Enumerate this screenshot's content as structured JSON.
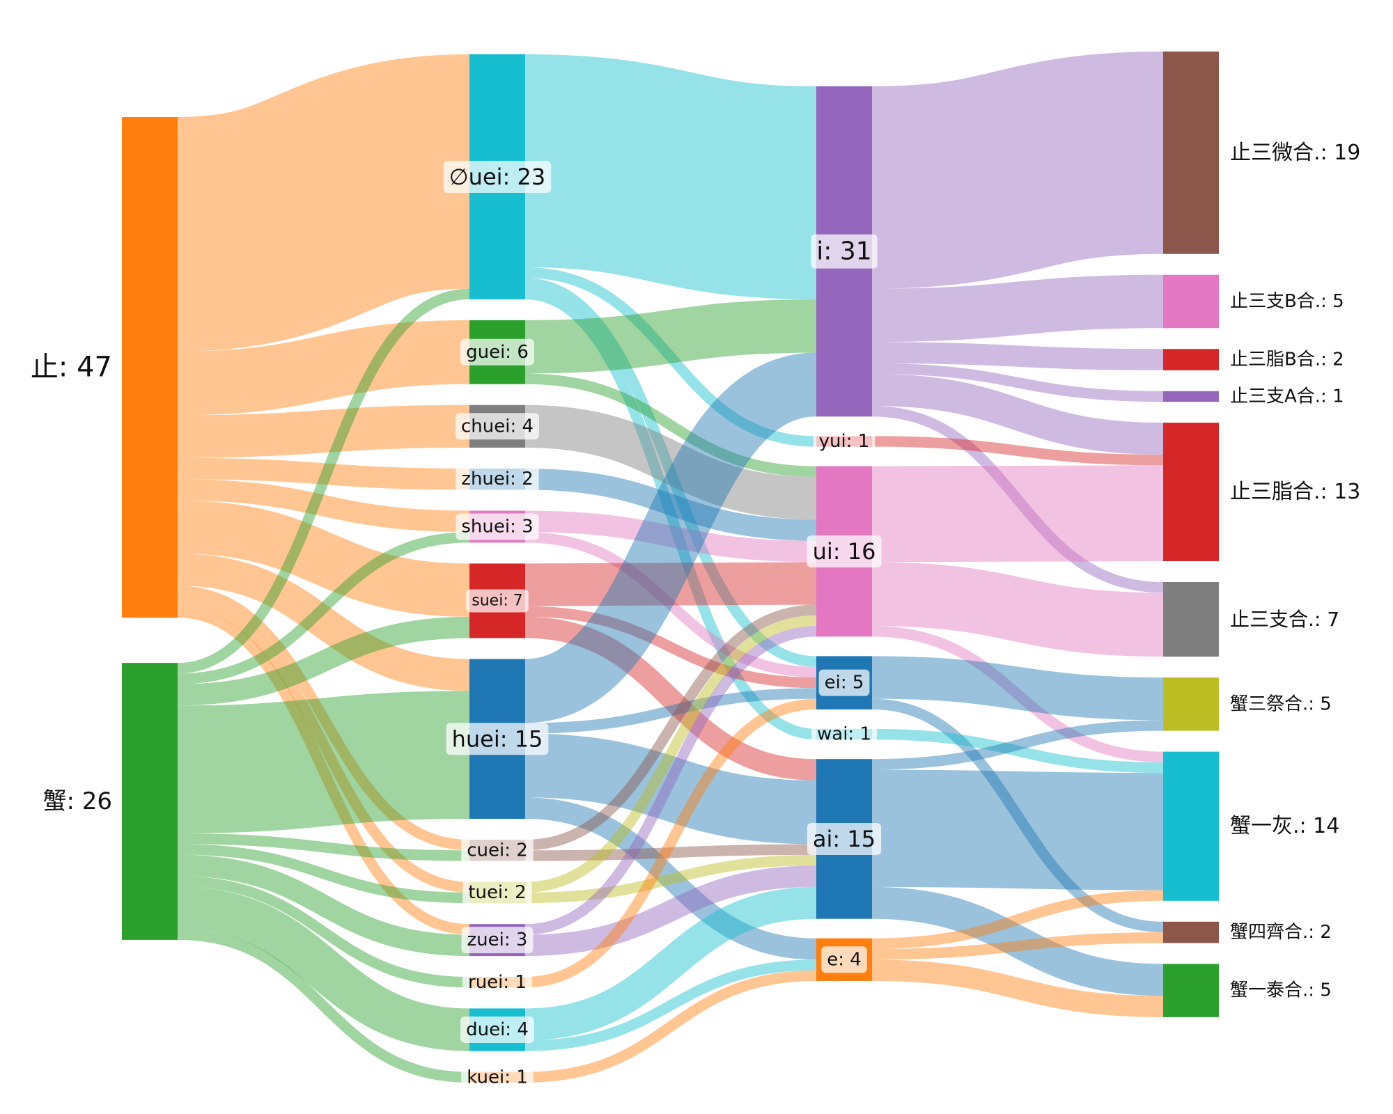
{
  "chart_data": {
    "type": "sankey",
    "title": "",
    "columns": [
      [
        {
          "id": "zhi",
          "label": "止: 47",
          "value": 47,
          "color": "#ff7f0e"
        },
        {
          "id": "xie",
          "label": "蟹: 26",
          "value": 26,
          "color": "#2ca02c"
        }
      ],
      [
        {
          "id": "0uei",
          "label": "∅uei: 23",
          "value": 23,
          "color": "#17becf"
        },
        {
          "id": "guei",
          "label": "guei: 6",
          "value": 6,
          "color": "#2ca02c"
        },
        {
          "id": "chuei",
          "label": "chuei: 4",
          "value": 4,
          "color": "#7f7f7f"
        },
        {
          "id": "zhuei",
          "label": "zhuei: 2",
          "value": 2,
          "color": "#1f77b4"
        },
        {
          "id": "shuei",
          "label": "shuei: 3",
          "value": 3,
          "color": "#e377c2"
        },
        {
          "id": "suei",
          "label": "suei: 7",
          "value": 7,
          "color": "#d62728"
        },
        {
          "id": "huei",
          "label": "huei: 15",
          "value": 15,
          "color": "#1f77b4"
        },
        {
          "id": "cuei",
          "label": "cuei: 2",
          "value": 2,
          "color": "#8c564b"
        },
        {
          "id": "tuei",
          "label": "tuei: 2",
          "value": 2,
          "color": "#bcbd22"
        },
        {
          "id": "zuei",
          "label": "zuei: 3",
          "value": 3,
          "color": "#9467bd"
        },
        {
          "id": "ruei",
          "label": "ruei: 1",
          "value": 1,
          "color": "#ff7f0e"
        },
        {
          "id": "duei",
          "label": "duei: 4",
          "value": 4,
          "color": "#17becf"
        },
        {
          "id": "kuei",
          "label": "kuei: 1",
          "value": 1,
          "color": "#ff7f0e"
        }
      ],
      [
        {
          "id": "i",
          "label": "i: 31",
          "value": 31,
          "color": "#9467bd"
        },
        {
          "id": "yui",
          "label": "yui: 1",
          "value": 1,
          "color": "#d62728"
        },
        {
          "id": "ui",
          "label": "ui: 16",
          "value": 16,
          "color": "#e377c2"
        },
        {
          "id": "ei",
          "label": "ei: 5",
          "value": 5,
          "color": "#1f77b4"
        },
        {
          "id": "wai",
          "label": "wai: 1",
          "value": 1,
          "color": "#17becf"
        },
        {
          "id": "ai",
          "label": "ai: 15",
          "value": 15,
          "color": "#1f77b4"
        },
        {
          "id": "e",
          "label": "e: 4",
          "value": 4,
          "color": "#ff7f0e"
        }
      ],
      [
        {
          "id": "z3wei",
          "label": "止三微合.: 19",
          "value": 19,
          "color": "#8c564b"
        },
        {
          "id": "z3zhiB",
          "label": "止三支B合.: 5",
          "value": 5,
          "color": "#e377c2"
        },
        {
          "id": "z3ziB",
          "label": "止三脂B合.: 2",
          "value": 2,
          "color": "#d62728"
        },
        {
          "id": "z3zhiA",
          "label": "止三支A合.: 1",
          "value": 1,
          "color": "#9467bd"
        },
        {
          "id": "z3zi",
          "label": "止三脂合.: 13",
          "value": 13,
          "color": "#d62728"
        },
        {
          "id": "z3zhi",
          "label": "止三支合.: 7",
          "value": 7,
          "color": "#7f7f7f"
        },
        {
          "id": "x3ji",
          "label": "蟹三祭合.: 5",
          "value": 5,
          "color": "#bcbd22"
        },
        {
          "id": "x1hui",
          "label": "蟹一灰.: 14",
          "value": 14,
          "color": "#17becf"
        },
        {
          "id": "x4qi",
          "label": "蟹四齊合.: 2",
          "value": 2,
          "color": "#8c564b"
        },
        {
          "id": "x1tai",
          "label": "蟹一泰合.: 5",
          "value": 5,
          "color": "#2ca02c"
        }
      ]
    ],
    "links": [
      {
        "source": "zhi",
        "target": "0uei",
        "value": 22
      },
      {
        "source": "zhi",
        "target": "guei",
        "value": 6
      },
      {
        "source": "zhi",
        "target": "chuei",
        "value": 4
      },
      {
        "source": "zhi",
        "target": "zhuei",
        "value": 2
      },
      {
        "source": "zhi",
        "target": "shuei",
        "value": 2
      },
      {
        "source": "zhi",
        "target": "suei",
        "value": 5
      },
      {
        "source": "zhi",
        "target": "huei",
        "value": 3
      },
      {
        "source": "zhi",
        "target": "tuei",
        "value": 1
      },
      {
        "source": "zhi",
        "target": "zuei",
        "value": 1
      },
      {
        "source": "zhi",
        "target": "cuei",
        "value": 1
      },
      {
        "source": "xie",
        "target": "0uei",
        "value": 1
      },
      {
        "source": "xie",
        "target": "shuei",
        "value": 1
      },
      {
        "source": "xie",
        "target": "suei",
        "value": 2
      },
      {
        "source": "xie",
        "target": "huei",
        "value": 12
      },
      {
        "source": "xie",
        "target": "cuei",
        "value": 1
      },
      {
        "source": "xie",
        "target": "tuei",
        "value": 1
      },
      {
        "source": "xie",
        "target": "zuei",
        "value": 2
      },
      {
        "source": "xie",
        "target": "ruei",
        "value": 1
      },
      {
        "source": "xie",
        "target": "duei",
        "value": 4
      },
      {
        "source": "xie",
        "target": "kuei",
        "value": 1
      },
      {
        "source": "0uei",
        "target": "i",
        "value": 20
      },
      {
        "source": "0uei",
        "target": "yui",
        "value": 1
      },
      {
        "source": "0uei",
        "target": "ei",
        "value": 1
      },
      {
        "source": "0uei",
        "target": "wai",
        "value": 1
      },
      {
        "source": "guei",
        "target": "i",
        "value": 5
      },
      {
        "source": "guei",
        "target": "ui",
        "value": 1
      },
      {
        "source": "chuei",
        "target": "ui",
        "value": 4
      },
      {
        "source": "zhuei",
        "target": "ui",
        "value": 2
      },
      {
        "source": "shuei",
        "target": "ui",
        "value": 2
      },
      {
        "source": "shuei",
        "target": "ei",
        "value": 1
      },
      {
        "source": "suei",
        "target": "ui",
        "value": 4
      },
      {
        "source": "suei",
        "target": "ei",
        "value": 1
      },
      {
        "source": "suei",
        "target": "ai",
        "value": 2
      },
      {
        "source": "huei",
        "target": "i",
        "value": 6
      },
      {
        "source": "huei",
        "target": "ei",
        "value": 1
      },
      {
        "source": "huei",
        "target": "ai",
        "value": 6
      },
      {
        "source": "huei",
        "target": "e",
        "value": 2
      },
      {
        "source": "cuei",
        "target": "ui",
        "value": 1
      },
      {
        "source": "cuei",
        "target": "ai",
        "value": 1
      },
      {
        "source": "tuei",
        "target": "ui",
        "value": 1
      },
      {
        "source": "tuei",
        "target": "ai",
        "value": 1
      },
      {
        "source": "zuei",
        "target": "ui",
        "value": 1
      },
      {
        "source": "zuei",
        "target": "ai",
        "value": 2
      },
      {
        "source": "ruei",
        "target": "ei",
        "value": 1
      },
      {
        "source": "duei",
        "target": "ai",
        "value": 3
      },
      {
        "source": "duei",
        "target": "e",
        "value": 1
      },
      {
        "source": "kuei",
        "target": "e",
        "value": 1
      },
      {
        "source": "i",
        "target": "z3wei",
        "value": 19
      },
      {
        "source": "i",
        "target": "z3zhiB",
        "value": 5
      },
      {
        "source": "i",
        "target": "z3ziB",
        "value": 2
      },
      {
        "source": "i",
        "target": "z3zhiA",
        "value": 1
      },
      {
        "source": "i",
        "target": "z3zi",
        "value": 3
      },
      {
        "source": "i",
        "target": "z3zhi",
        "value": 1
      },
      {
        "source": "yui",
        "target": "z3zi",
        "value": 1
      },
      {
        "source": "ui",
        "target": "z3zi",
        "value": 9
      },
      {
        "source": "ui",
        "target": "z3zhi",
        "value": 6
      },
      {
        "source": "ui",
        "target": "x1hui",
        "value": 1
      },
      {
        "source": "ei",
        "target": "x3ji",
        "value": 4
      },
      {
        "source": "ei",
        "target": "x4qi",
        "value": 1
      },
      {
        "source": "wai",
        "target": "x1hui",
        "value": 1
      },
      {
        "source": "ai",
        "target": "x3ji",
        "value": 1
      },
      {
        "source": "ai",
        "target": "x1hui",
        "value": 11
      },
      {
        "source": "ai",
        "target": "x1tai",
        "value": 3
      },
      {
        "source": "e",
        "target": "x1hui",
        "value": 1
      },
      {
        "source": "e",
        "target": "x4qi",
        "value": 1
      },
      {
        "source": "e",
        "target": "x1tai",
        "value": 2
      }
    ]
  }
}
